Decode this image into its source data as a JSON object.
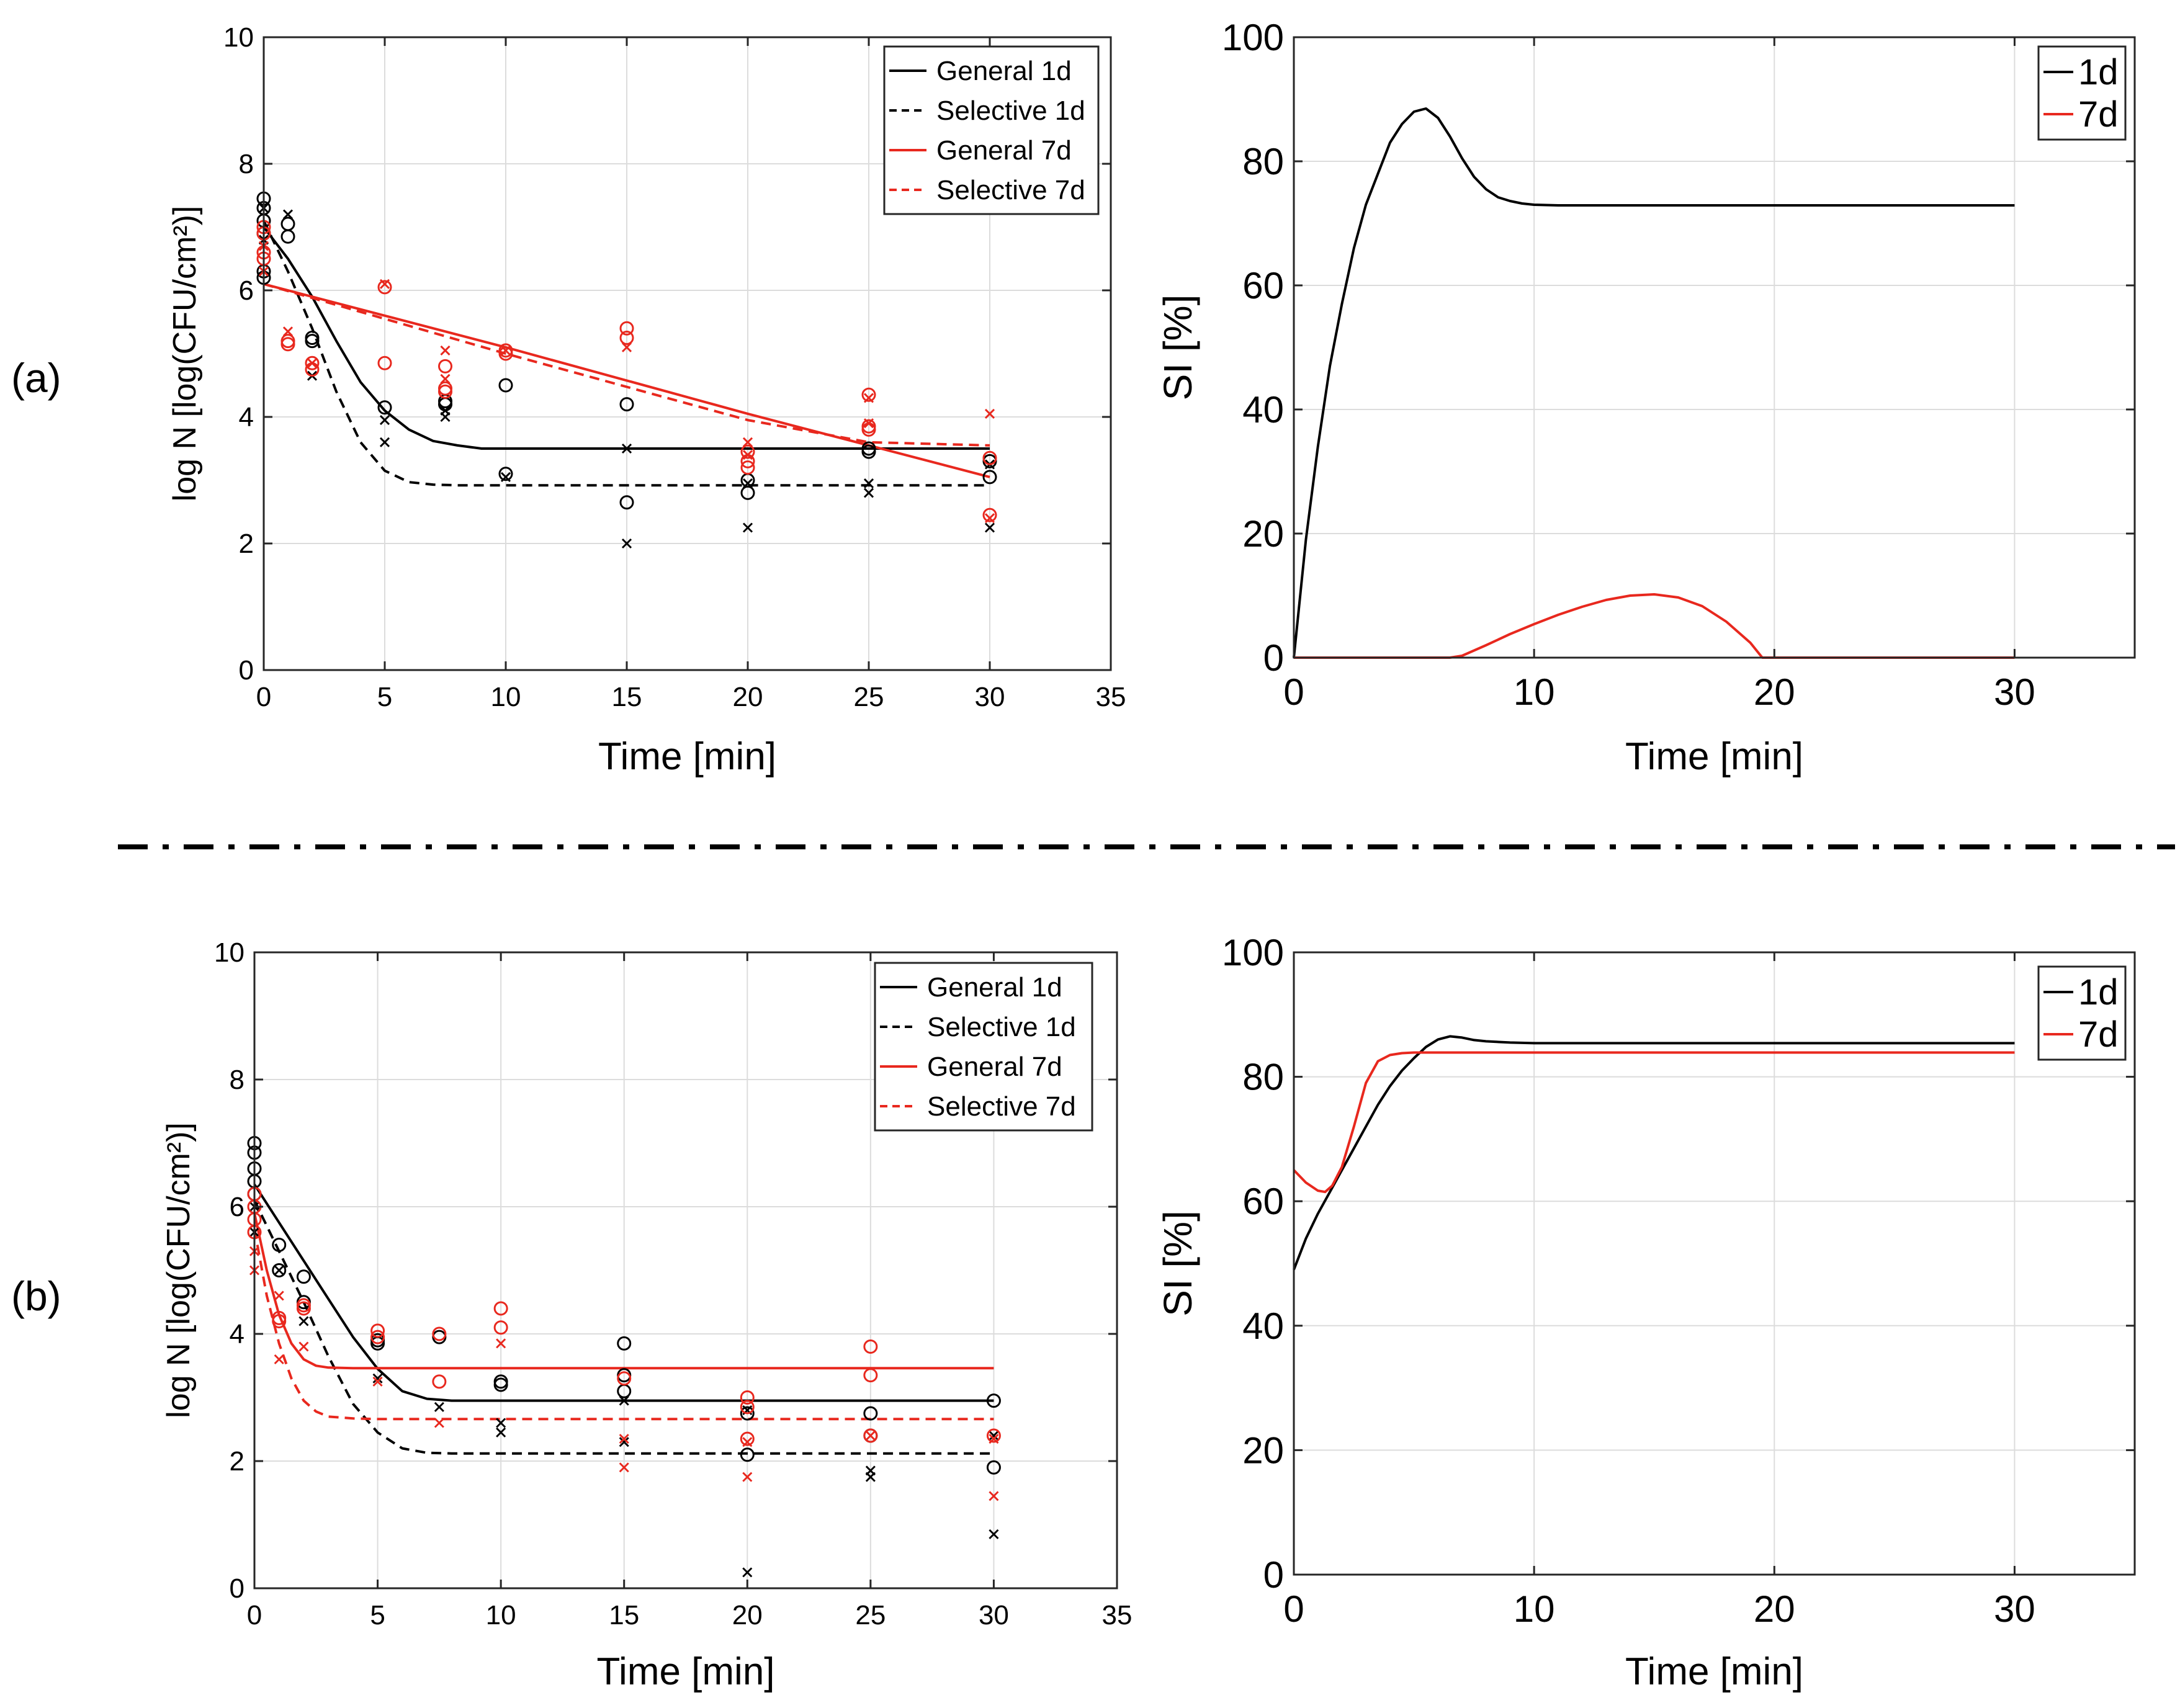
{
  "panel_labels": [
    "(a)",
    "(b)"
  ],
  "chart_data": [
    {
      "id": "a-left",
      "type": "line",
      "xlabel": "Time [min]",
      "ylabel": "log N [log(CFU/cm²)]",
      "xlim": [
        0,
        35
      ],
      "ylim": [
        0,
        10
      ],
      "xticks": [
        0,
        5,
        10,
        15,
        20,
        25,
        30,
        35
      ],
      "yticks": [
        0,
        2,
        4,
        6,
        8,
        10
      ],
      "grid": true,
      "legend": "top-right",
      "series": [
        {
          "name": "General 1d",
          "color": "#000000",
          "dash": "solid",
          "x": [
            0,
            1,
            2,
            3,
            4,
            5,
            6,
            7,
            8,
            9,
            10,
            15,
            20,
            25,
            30
          ],
          "y": [
            7.0,
            6.5,
            5.9,
            5.2,
            4.55,
            4.1,
            3.8,
            3.62,
            3.55,
            3.5,
            3.5,
            3.5,
            3.5,
            3.5,
            3.5
          ]
        },
        {
          "name": "Selective 1d",
          "color": "#000000",
          "dash": "dashed",
          "x": [
            0,
            1,
            2,
            3,
            4,
            5,
            6,
            7,
            8,
            10,
            15,
            20,
            25,
            30
          ],
          "y": [
            7.1,
            6.3,
            5.4,
            4.4,
            3.6,
            3.15,
            2.97,
            2.93,
            2.92,
            2.92,
            2.92,
            2.92,
            2.92,
            2.92
          ]
        },
        {
          "name": "General 7d",
          "color": "#e8281e",
          "dash": "solid",
          "x": [
            0,
            10,
            20,
            30
          ],
          "y": [
            6.1,
            5.1,
            4.05,
            3.05
          ]
        },
        {
          "name": "Selective 7d",
          "color": "#e8281e",
          "dash": "dashed",
          "x": [
            0,
            10,
            20,
            25,
            30
          ],
          "y": [
            6.1,
            5.0,
            3.95,
            3.6,
            3.55
          ]
        }
      ],
      "points": [
        {
          "marker": "circle",
          "color": "#000000",
          "x": [
            0,
            0,
            0,
            0,
            0,
            0,
            1,
            1,
            2,
            2,
            5,
            7.5,
            7.5,
            10,
            10,
            15,
            15,
            20,
            20,
            25,
            25,
            30,
            30
          ],
          "y": [
            7.45,
            7.3,
            7.1,
            6.9,
            6.3,
            6.2,
            7.05,
            6.85,
            5.25,
            5.2,
            4.15,
            4.25,
            4.2,
            4.5,
            3.1,
            4.2,
            2.65,
            2.8,
            3.0,
            3.45,
            3.5,
            3.3,
            3.05
          ]
        },
        {
          "marker": "cross",
          "color": "#000000",
          "x": [
            0,
            0,
            1,
            2,
            5,
            5,
            7.5,
            7.5,
            10,
            15,
            15,
            20,
            20,
            25,
            25,
            30,
            30
          ],
          "y": [
            7.3,
            6.8,
            7.2,
            4.65,
            3.95,
            3.6,
            4.1,
            4.0,
            3.05,
            3.5,
            2.0,
            2.25,
            2.95,
            2.8,
            2.95,
            2.25,
            3.25
          ]
        },
        {
          "marker": "circle",
          "color": "#e8281e",
          "x": [
            0,
            0,
            0,
            0,
            1,
            1,
            2,
            2,
            5,
            5,
            7.5,
            7.5,
            7.5,
            10,
            10,
            15,
            15,
            20,
            20,
            20,
            25,
            25,
            25,
            30,
            30
          ],
          "y": [
            7.0,
            6.9,
            6.6,
            6.5,
            5.2,
            5.15,
            4.85,
            4.75,
            6.05,
            4.85,
            4.8,
            4.45,
            4.4,
            5.05,
            5.0,
            5.4,
            5.25,
            3.45,
            3.3,
            3.2,
            4.35,
            3.85,
            3.8,
            3.35,
            2.45
          ]
        },
        {
          "marker": "cross",
          "color": "#e8281e",
          "x": [
            0,
            0,
            1,
            2,
            5,
            7.5,
            7.5,
            10,
            15,
            20,
            20,
            25,
            25,
            30,
            30
          ],
          "y": [
            6.7,
            6.3,
            5.35,
            4.85,
            6.1,
            5.05,
            4.6,
            5.05,
            5.1,
            3.6,
            3.4,
            4.3,
            3.9,
            4.05,
            2.4
          ]
        }
      ]
    },
    {
      "id": "a-right",
      "type": "line",
      "xlabel": "Time [min]",
      "ylabel": "SI [%]",
      "xlim": [
        0,
        35
      ],
      "ylim": [
        0,
        100
      ],
      "xticks": [
        0,
        10,
        20,
        30
      ],
      "yticks": [
        0,
        20,
        40,
        60,
        80,
        100
      ],
      "grid": true,
      "legend": "top-right",
      "series": [
        {
          "name": "1d",
          "color": "#000000",
          "x": [
            0,
            0.5,
            1,
            1.5,
            2,
            2.5,
            3,
            3.5,
            4,
            4.5,
            5,
            5.5,
            6,
            6.5,
            7,
            7.5,
            8,
            8.5,
            9,
            9.5,
            10,
            11,
            12,
            15,
            20,
            25,
            30
          ],
          "y": [
            0,
            19,
            34,
            47,
            57,
            66,
            73,
            78,
            83,
            86,
            88,
            88.5,
            87,
            84,
            80.5,
            77.5,
            75.5,
            74.2,
            73.6,
            73.2,
            73.0,
            72.9,
            72.9,
            72.9,
            72.9,
            72.9,
            72.9
          ]
        },
        {
          "name": "7d",
          "color": "#e8281e",
          "x": [
            0,
            6.5,
            7,
            8,
            9,
            10,
            11,
            12,
            13,
            14,
            15,
            16,
            17,
            18,
            19,
            19.5,
            20,
            25,
            30
          ],
          "y": [
            0,
            0,
            0.3,
            2.0,
            3.8,
            5.4,
            6.9,
            8.2,
            9.3,
            10.0,
            10.2,
            9.7,
            8.3,
            5.8,
            2.4,
            0,
            0,
            0,
            0
          ]
        }
      ]
    },
    {
      "id": "b-left",
      "type": "line",
      "xlabel": "Time [min]",
      "ylabel": "log N [log(CFU/cm²)]",
      "xlim": [
        0,
        35
      ],
      "ylim": [
        0,
        10
      ],
      "xticks": [
        0,
        5,
        10,
        15,
        20,
        25,
        30,
        35
      ],
      "yticks": [
        0,
        2,
        4,
        6,
        8,
        10
      ],
      "grid": true,
      "legend": "top-right",
      "series": [
        {
          "name": "General 1d",
          "color": "#000000",
          "dash": "solid",
          "x": [
            0,
            1,
            2,
            3,
            4,
            5,
            6,
            7,
            8,
            9,
            10,
            15,
            20,
            25,
            30
          ],
          "y": [
            6.35,
            5.75,
            5.15,
            4.55,
            3.95,
            3.45,
            3.1,
            2.98,
            2.95,
            2.95,
            2.95,
            2.95,
            2.95,
            2.95,
            2.95
          ]
        },
        {
          "name": "Selective 1d",
          "color": "#000000",
          "dash": "dashed",
          "x": [
            0,
            1,
            2,
            3,
            4,
            5,
            6,
            7,
            8,
            10,
            15,
            20,
            25,
            30
          ],
          "y": [
            6.1,
            5.3,
            4.5,
            3.65,
            2.9,
            2.45,
            2.2,
            2.13,
            2.12,
            2.12,
            2.12,
            2.12,
            2.12,
            2.12
          ]
        },
        {
          "name": "General 7d",
          "color": "#e8281e",
          "dash": "solid",
          "x": [
            0,
            0.5,
            1,
            1.5,
            2,
            2.5,
            3,
            4,
            5,
            10,
            20,
            30
          ],
          "y": [
            5.9,
            5.0,
            4.3,
            3.85,
            3.6,
            3.5,
            3.47,
            3.46,
            3.46,
            3.46,
            3.46,
            3.46
          ]
        },
        {
          "name": "Selective 7d",
          "color": "#e8281e",
          "dash": "dashed",
          "x": [
            0,
            0.5,
            1,
            1.5,
            2,
            2.5,
            3,
            4,
            5,
            10,
            20,
            30
          ],
          "y": [
            5.65,
            4.6,
            3.85,
            3.3,
            2.95,
            2.78,
            2.7,
            2.67,
            2.66,
            2.66,
            2.66,
            2.66
          ]
        }
      ],
      "points": [
        {
          "marker": "circle",
          "color": "#000000",
          "x": [
            0,
            0,
            0,
            0,
            0,
            1,
            1,
            2,
            2,
            5,
            5,
            7.5,
            10,
            10,
            15,
            15,
            15,
            20,
            20,
            25,
            25,
            30,
            30
          ],
          "y": [
            7.0,
            6.85,
            6.6,
            6.4,
            6.2,
            5.4,
            5.0,
            4.9,
            4.5,
            3.9,
            3.85,
            3.95,
            3.25,
            3.2,
            3.85,
            3.35,
            3.1,
            2.75,
            2.1,
            2.75,
            2.4,
            2.95,
            1.9
          ]
        },
        {
          "marker": "cross",
          "color": "#000000",
          "x": [
            0,
            0,
            1,
            2,
            5,
            7.5,
            10,
            10,
            15,
            15,
            20,
            20,
            25,
            25,
            30,
            30
          ],
          "y": [
            6.0,
            5.6,
            5.0,
            4.2,
            3.3,
            2.85,
            2.6,
            2.45,
            2.95,
            2.3,
            2.8,
            0.25,
            1.85,
            1.75,
            2.4,
            0.85
          ]
        },
        {
          "marker": "circle",
          "color": "#e8281e",
          "x": [
            0,
            0,
            0,
            0,
            1,
            1,
            2,
            2,
            5,
            5,
            7.5,
            7.5,
            10,
            10,
            15,
            20,
            20,
            20,
            25,
            25,
            25,
            30
          ],
          "y": [
            6.2,
            6.0,
            5.8,
            5.6,
            4.25,
            4.2,
            4.45,
            4.4,
            4.05,
            3.95,
            4.0,
            3.25,
            4.4,
            4.1,
            3.3,
            3.0,
            2.85,
            2.35,
            3.8,
            3.35,
            2.4,
            2.4
          ]
        },
        {
          "marker": "cross",
          "color": "#e8281e",
          "x": [
            0,
            0,
            1,
            1,
            2,
            5,
            7.5,
            10,
            15,
            15,
            20,
            20,
            25,
            30,
            30
          ],
          "y": [
            5.3,
            5.0,
            4.6,
            3.6,
            3.8,
            3.25,
            2.6,
            3.85,
            2.35,
            1.9,
            2.3,
            1.75,
            2.4,
            2.35,
            1.45
          ]
        }
      ]
    },
    {
      "id": "b-right",
      "type": "line",
      "xlabel": "Time [min]",
      "ylabel": "SI [%]",
      "xlim": [
        0,
        35
      ],
      "ylim": [
        0,
        100
      ],
      "xticks": [
        0,
        10,
        20,
        30
      ],
      "yticks": [
        0,
        20,
        40,
        60,
        80,
        100
      ],
      "grid": true,
      "legend": "top-right",
      "series": [
        {
          "name": "1d",
          "color": "#000000",
          "x": [
            0,
            0.5,
            1,
            1.5,
            2,
            2.5,
            3,
            3.5,
            4,
            4.5,
            5,
            5.5,
            6,
            6.5,
            7,
            7.5,
            8,
            9,
            10,
            15,
            20,
            25,
            30
          ],
          "y": [
            49,
            54,
            58,
            61.5,
            65,
            68.5,
            72,
            75.5,
            78.5,
            81,
            83,
            84.8,
            86,
            86.5,
            86.3,
            85.9,
            85.7,
            85.5,
            85.4,
            85.4,
            85.4,
            85.4,
            85.4
          ]
        },
        {
          "name": "7d",
          "color": "#e8281e",
          "x": [
            0,
            0.5,
            1,
            1.3,
            1.6,
            2,
            2.5,
            3,
            3.5,
            4,
            4.5,
            5,
            6,
            8,
            10,
            20,
            30
          ],
          "y": [
            65,
            63,
            61.7,
            61.5,
            62.5,
            65.5,
            72,
            79,
            82.5,
            83.5,
            83.8,
            83.9,
            83.9,
            83.9,
            83.9,
            83.9,
            83.9
          ]
        }
      ]
    }
  ]
}
